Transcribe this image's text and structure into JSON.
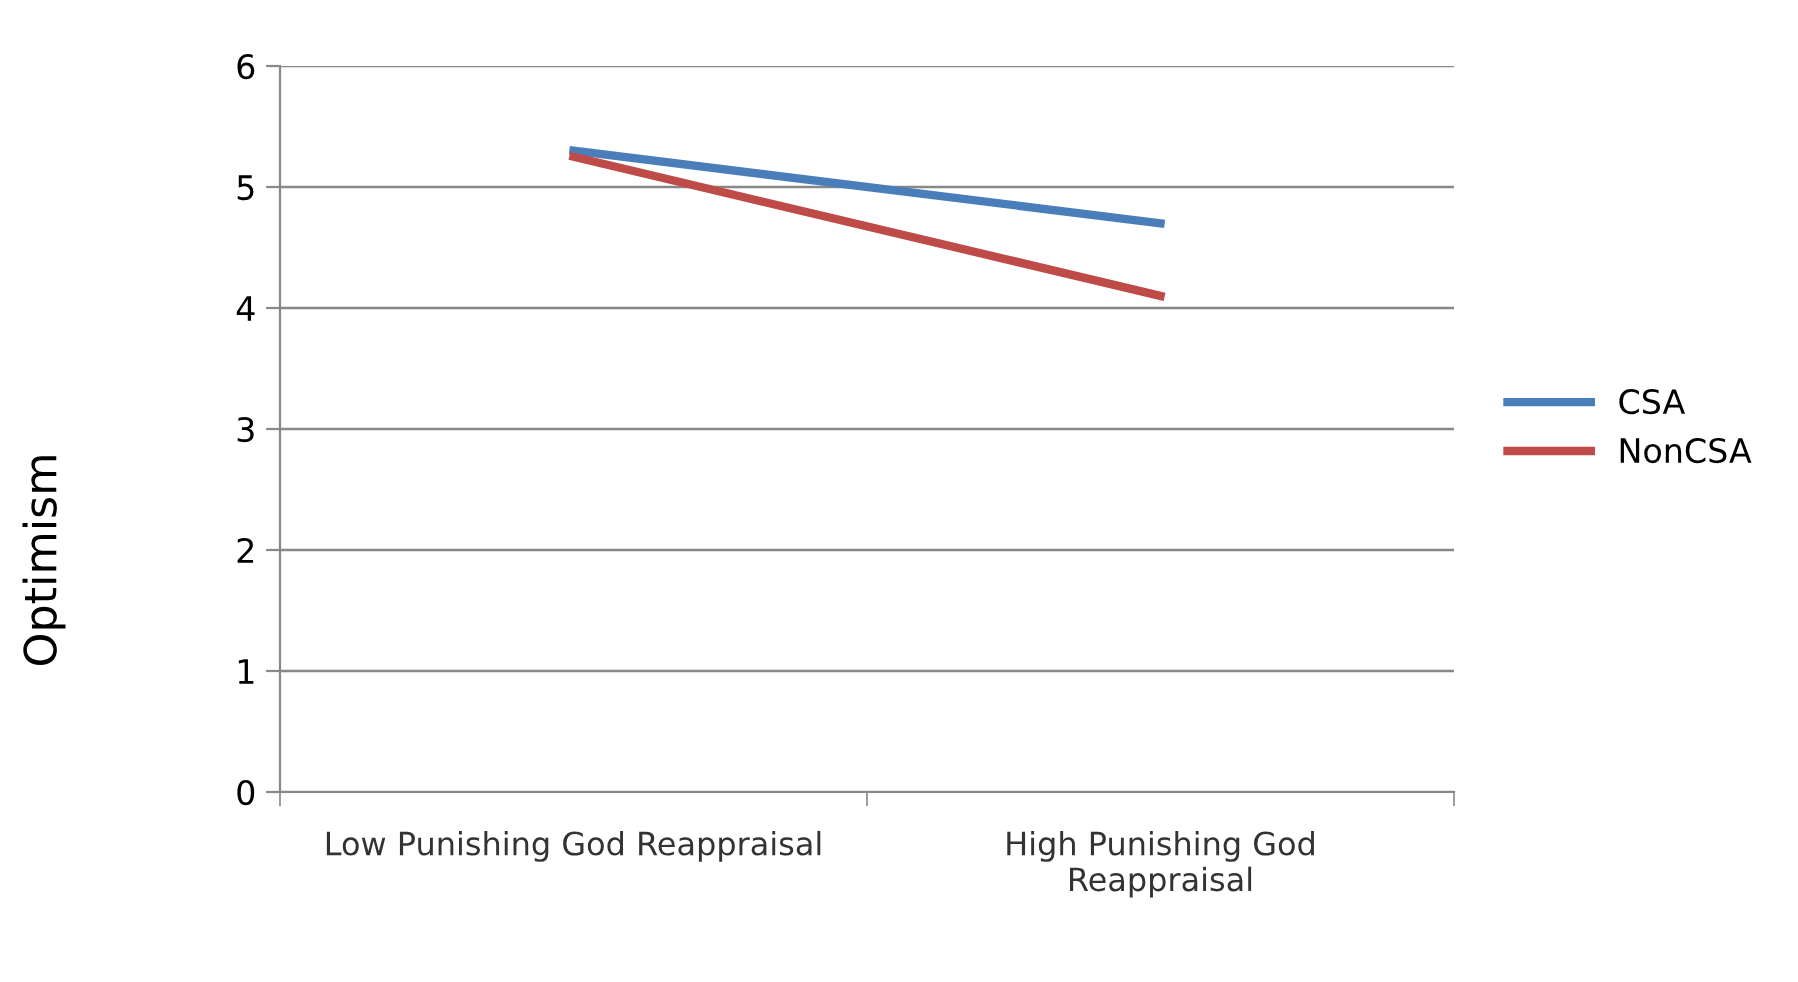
{
  "chart_data": {
    "type": "line",
    "ylabel": "Optimism",
    "categories": [
      "Low Punishing God Reappraisal",
      "High Punishing God\nReappraisal"
    ],
    "series": [
      {
        "name": "CSA",
        "color": "#4a7ebb",
        "values": [
          5.3,
          4.7
        ]
      },
      {
        "name": "NonCSA",
        "color": "#be4b48",
        "values": [
          5.25,
          4.1
        ]
      }
    ],
    "ylim": [
      0,
      6
    ],
    "yticks": [
      0,
      1,
      2,
      3,
      4,
      5,
      6
    ],
    "grid": "y",
    "legend": "right",
    "marker": "none",
    "line_style": "solid"
  }
}
